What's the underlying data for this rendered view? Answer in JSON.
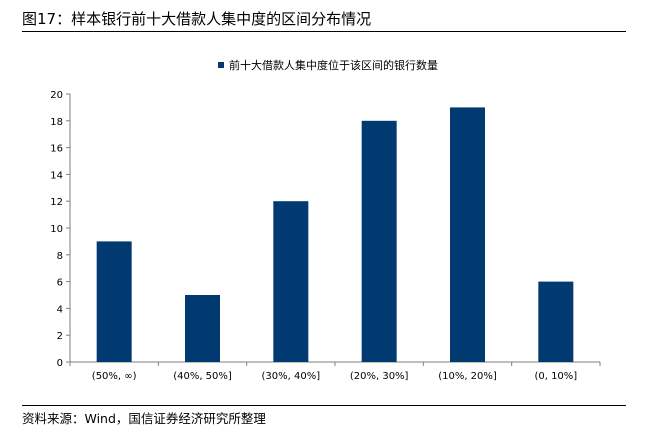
{
  "figure": {
    "title": "图17：样本银行前十大借款人集中度的区间分布情况",
    "source": "资料来源：Wind，国信证券经济研究所整理"
  },
  "chart_data": {
    "type": "bar",
    "categories": [
      "(50%, ∞)",
      "(40%, 50%]",
      "(30%, 40%]",
      "(20%, 30%]",
      "(10%, 20%]",
      "(0, 10%]"
    ],
    "series": [
      {
        "name": "前十大借款人集中度位于该区间的银行数量",
        "values": [
          9,
          5,
          12,
          18,
          19,
          6
        ],
        "color": "#003a70"
      }
    ],
    "ylim": [
      0,
      20
    ],
    "yticks": [
      0,
      2,
      4,
      6,
      8,
      10,
      12,
      14,
      16,
      18,
      20
    ],
    "xlabel": "",
    "ylabel": "",
    "grid": false,
    "legend": "top-center"
  }
}
